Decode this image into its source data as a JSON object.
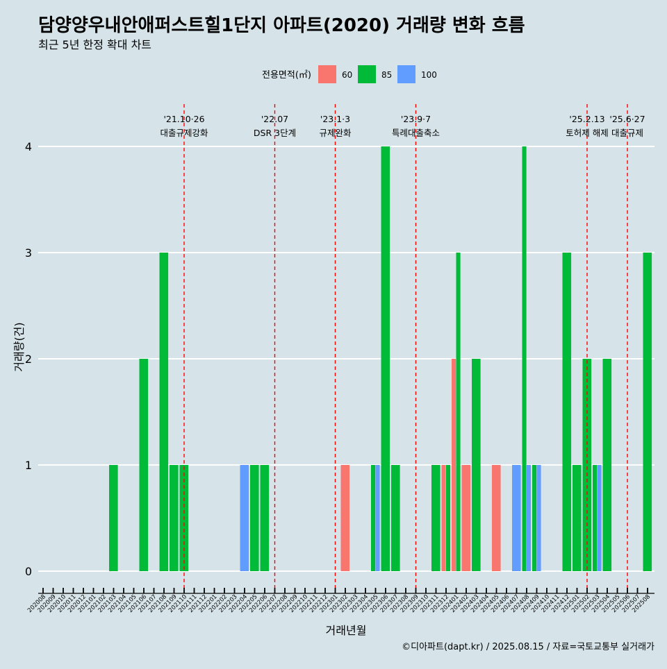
{
  "chart_data": {
    "type": "bar",
    "title": "담양양우내안애퍼스트힐1단지 아파트(2020) 거래량 변화 흐름",
    "subtitle": "최근 5년 한정 확대 차트",
    "xlabel": "거래년월",
    "ylabel": "거래량(건)",
    "caption": "©디아파트(dapt.kr) / 2025.08.15 / 자료=국토교통부 실거래가",
    "legend_title": "전용면적(㎡)",
    "legend_position": "top",
    "ylim": [
      0,
      4
    ],
    "y_ticks": [
      0,
      1,
      2,
      3,
      4
    ],
    "grid": true,
    "months": [
      "202008",
      "202009",
      "202010",
      "202011",
      "202012",
      "202101",
      "202102",
      "202103",
      "202104",
      "202105",
      "202106",
      "202107",
      "202108",
      "202109",
      "202110",
      "202111",
      "202112",
      "202201",
      "202202",
      "202203",
      "202204",
      "202205",
      "202206",
      "202207",
      "202208",
      "202209",
      "202210",
      "202211",
      "202212",
      "202301",
      "202302",
      "202303",
      "202304",
      "202305",
      "202306",
      "202307",
      "202308",
      "202309",
      "202310",
      "202311",
      "202312",
      "202401",
      "202402",
      "202403",
      "202404",
      "202405",
      "202406",
      "202407",
      "202408",
      "202409",
      "202410",
      "202411",
      "202412",
      "202501",
      "202502",
      "202503",
      "202504",
      "202505",
      "202506",
      "202507",
      "202508"
    ],
    "series": [
      {
        "name": "60",
        "color": "#f8766d",
        "data": [
          [
            "202302",
            1
          ],
          [
            "202312",
            1
          ],
          [
            "202401",
            2
          ],
          [
            "202402",
            1
          ],
          [
            "202405",
            1
          ]
        ]
      },
      {
        "name": "85",
        "color": "#00ba38",
        "data": [
          [
            "202103",
            1
          ],
          [
            "202106",
            2
          ],
          [
            "202108",
            3
          ],
          [
            "202109",
            1
          ],
          [
            "202110",
            1
          ],
          [
            "202205",
            1
          ],
          [
            "202206",
            1
          ],
          [
            "202305",
            1
          ],
          [
            "202306",
            4
          ],
          [
            "202307",
            1
          ],
          [
            "202311",
            1
          ],
          [
            "202312",
            1
          ],
          [
            "202401",
            3
          ],
          [
            "202403",
            2
          ],
          [
            "202408",
            4
          ],
          [
            "202409",
            1
          ],
          [
            "202412",
            3
          ],
          [
            "202501",
            1
          ],
          [
            "202502",
            2
          ],
          [
            "202503",
            1
          ],
          [
            "202504",
            2
          ],
          [
            "202508",
            3
          ]
        ]
      },
      {
        "name": "100",
        "color": "#619cff",
        "data": [
          [
            "202204",
            1
          ],
          [
            "202305",
            1
          ],
          [
            "202407",
            1
          ],
          [
            "202408",
            1
          ],
          [
            "202409",
            1
          ],
          [
            "202503",
            1
          ]
        ]
      }
    ],
    "events": [
      {
        "month": "202110",
        "date": "'21.10·26",
        "label": "대출규제강화"
      },
      {
        "month": "202207",
        "date": "'22.07",
        "label": "DSR 3단계"
      },
      {
        "month": "202301",
        "date": "'23.1·3",
        "label": "규제완화"
      },
      {
        "month": "202309",
        "date": "'23.9·7",
        "label": "특례대출축소"
      },
      {
        "month": "202502",
        "date": "'25.2.13",
        "label": "토허제 해제"
      },
      {
        "month": "202506",
        "date": "'25.6·27",
        "label": "대출규제"
      }
    ],
    "event_line_color": "#ff0000"
  }
}
